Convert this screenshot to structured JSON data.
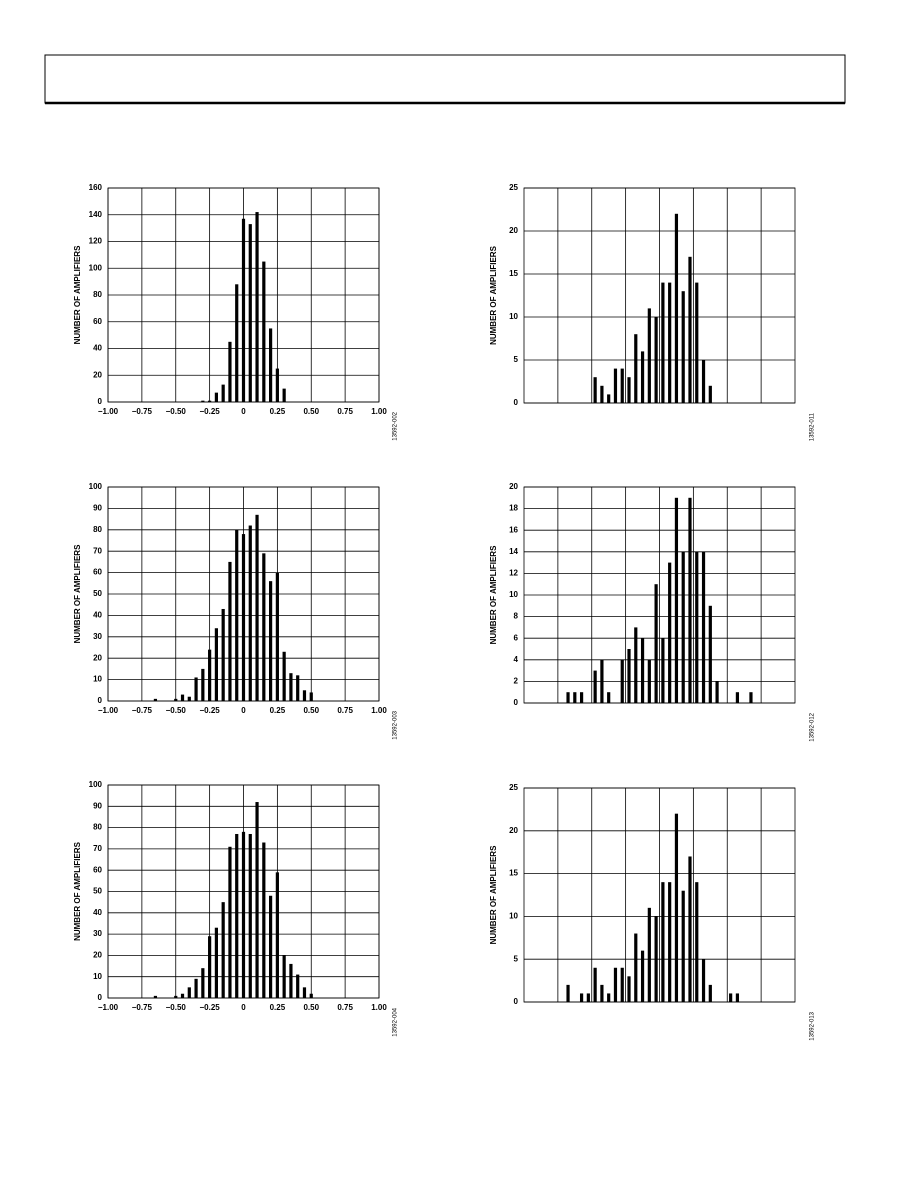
{
  "chart_data": [
    {
      "type": "bar",
      "ylabel": "NUMBER OF AMPLIFIERS",
      "annotation": "13592-002",
      "color": "#000000",
      "grid": true,
      "xlim": [
        -1,
        1
      ],
      "xticks": [
        {
          "value": -1,
          "label": "−1.00"
        },
        {
          "value": -0.75,
          "label": "−0.75"
        },
        {
          "value": -0.5,
          "label": "−0.50"
        },
        {
          "value": -0.25,
          "label": "−0.25"
        },
        0,
        0.25,
        {
          "value": 0.5,
          "label": "0.50"
        },
        0.75,
        {
          "value": 1,
          "label": "1.00"
        }
      ],
      "ylim": [
        0,
        160
      ],
      "yticks": [
        0,
        20,
        40,
        60,
        80,
        100,
        120,
        140,
        160
      ],
      "x": [
        -0.3,
        -0.25,
        -0.2,
        -0.15,
        -0.1,
        -0.05,
        0,
        0.05,
        0.1,
        0.15,
        0.2,
        0.25,
        0.3
      ],
      "values": [
        1,
        1,
        7,
        13,
        45,
        88,
        137,
        133,
        142,
        105,
        55,
        25,
        10
      ]
    },
    {
      "type": "bar",
      "ylabel": "NUMBER OF AMPLIFIERS",
      "annotation": "13592-011",
      "color": "#000000",
      "grid": true,
      "ylim": [
        0,
        25
      ],
      "yticks": [
        0,
        5,
        10,
        15,
        20,
        25
      ],
      "categories": [
        null,
        null,
        null,
        null,
        null,
        null,
        null,
        null,
        null,
        null,
        null,
        null,
        null,
        null,
        null,
        null,
        null,
        null,
        null,
        null,
        null,
        null,
        null,
        null,
        null,
        null,
        null,
        null,
        null,
        null,
        null,
        null,
        null,
        null,
        null,
        null,
        null,
        null,
        null,
        null
      ],
      "values": [
        0,
        0,
        0,
        0,
        0,
        0,
        0,
        0,
        0,
        0,
        3,
        2,
        1,
        4,
        4,
        3,
        8,
        6,
        11,
        10,
        14,
        14,
        22,
        13,
        17,
        14,
        5,
        2,
        0,
        0,
        0,
        0,
        0,
        0,
        0,
        0,
        0,
        0,
        0,
        0
      ]
    },
    {
      "type": "bar",
      "ylabel": "NUMBER OF AMPLIFIERS",
      "annotation": "13592-003",
      "color": "#000000",
      "grid": true,
      "xlim": [
        -1,
        1
      ],
      "xticks": [
        {
          "value": -1,
          "label": "−1.00"
        },
        {
          "value": -0.75,
          "label": "−0.75"
        },
        {
          "value": -0.5,
          "label": "−0.50"
        },
        {
          "value": -0.25,
          "label": "−0.25"
        },
        0,
        0.25,
        {
          "value": 0.5,
          "label": "0.50"
        },
        0.75,
        {
          "value": 1,
          "label": "1.00"
        }
      ],
      "ylim": [
        0,
        100
      ],
      "yticks": [
        0,
        10,
        20,
        30,
        40,
        50,
        60,
        70,
        80,
        90,
        100
      ],
      "x": [
        -0.65,
        -0.5,
        -0.45,
        -0.4,
        -0.35,
        -0.3,
        -0.25,
        -0.2,
        -0.15,
        -0.1,
        -0.05,
        0,
        0.05,
        0.1,
        0.15,
        0.2,
        0.25,
        0.3,
        0.35,
        0.4,
        0.45,
        0.5
      ],
      "values": [
        1,
        1,
        3,
        2,
        11,
        15,
        24,
        34,
        43,
        65,
        80,
        78,
        82,
        87,
        69,
        56,
        60,
        23,
        13,
        12,
        5,
        4
      ]
    },
    {
      "type": "bar",
      "ylabel": "NUMBER OF AMPLIFIERS",
      "annotation": "13592-012",
      "color": "#000000",
      "grid": true,
      "ylim": [
        0,
        20
      ],
      "yticks": [
        0,
        2,
        4,
        6,
        8,
        10,
        12,
        14,
        16,
        18,
        20
      ],
      "categories": [
        null,
        null,
        null,
        null,
        null,
        null,
        null,
        null,
        null,
        null,
        null,
        null,
        null,
        null,
        null,
        null,
        null,
        null,
        null,
        null,
        null,
        null,
        null,
        null,
        null,
        null,
        null,
        null,
        null,
        null,
        null,
        null,
        null,
        null,
        null,
        null,
        null,
        null,
        null,
        null
      ],
      "values": [
        0,
        0,
        0,
        0,
        0,
        0,
        1,
        1,
        1,
        0,
        3,
        4,
        1,
        0,
        4,
        5,
        7,
        6,
        4,
        11,
        6,
        13,
        19,
        14,
        19,
        14,
        14,
        9,
        2,
        0,
        0,
        1,
        0,
        1,
        0,
        0,
        0,
        0,
        0,
        0
      ]
    },
    {
      "type": "bar",
      "ylabel": "NUMBER OF AMPLIFIERS",
      "annotation": "13592-004",
      "color": "#000000",
      "grid": true,
      "xlim": [
        -1,
        1
      ],
      "xticks": [
        {
          "value": -1,
          "label": "−1.00"
        },
        {
          "value": -0.75,
          "label": "−0.75"
        },
        {
          "value": -0.5,
          "label": "−0.50"
        },
        {
          "value": -0.25,
          "label": "−0.25"
        },
        0,
        0.25,
        {
          "value": 0.5,
          "label": "0.50"
        },
        0.75,
        {
          "value": 1,
          "label": "1.00"
        }
      ],
      "ylim": [
        0,
        100
      ],
      "yticks": [
        0,
        10,
        20,
        30,
        40,
        50,
        60,
        70,
        80,
        90,
        100
      ],
      "x": [
        -0.65,
        -0.5,
        -0.45,
        -0.4,
        -0.35,
        -0.3,
        -0.25,
        -0.2,
        -0.15,
        -0.1,
        -0.05,
        0,
        0.05,
        0.1,
        0.15,
        0.2,
        0.25,
        0.3,
        0.35,
        0.4,
        0.45,
        0.5
      ],
      "values": [
        1,
        1,
        2,
        5,
        9,
        14,
        29,
        33,
        45,
        71,
        77,
        78,
        77,
        92,
        73,
        48,
        59,
        20,
        16,
        11,
        5,
        2
      ]
    },
    {
      "type": "bar",
      "ylabel": "NUMBER OF AMPLIFIERS",
      "annotation": "13592-013",
      "color": "#000000",
      "grid": true,
      "ylim": [
        0,
        25
      ],
      "yticks": [
        0,
        5,
        10,
        15,
        20,
        25
      ],
      "categories": [
        null,
        null,
        null,
        null,
        null,
        null,
        null,
        null,
        null,
        null,
        null,
        null,
        null,
        null,
        null,
        null,
        null,
        null,
        null,
        null,
        null,
        null,
        null,
        null,
        null,
        null,
        null,
        null,
        null,
        null,
        null,
        null,
        null,
        null,
        null,
        null,
        null,
        null,
        null,
        null
      ],
      "values": [
        0,
        0,
        0,
        0,
        0,
        0,
        2,
        0,
        1,
        1,
        4,
        2,
        1,
        4,
        4,
        3,
        8,
        6,
        11,
        10,
        14,
        14,
        22,
        13,
        17,
        14,
        5,
        2,
        0,
        0,
        1,
        1,
        0,
        0,
        0,
        0,
        0,
        0,
        0,
        0
      ]
    }
  ]
}
